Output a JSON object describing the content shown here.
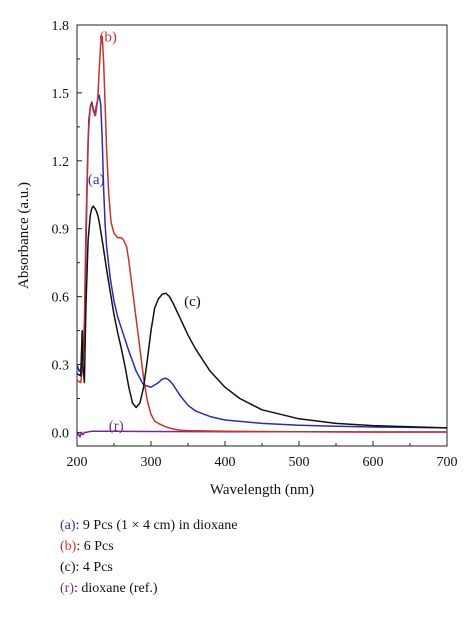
{
  "chart_data": {
    "type": "line",
    "xlabel": "Wavelength (nm)",
    "ylabel": "Absorbance (a.u.)",
    "xlim": [
      200,
      700
    ],
    "ylim": [
      -0.06,
      1.8
    ],
    "xticks": [
      200,
      300,
      400,
      500,
      600,
      700
    ],
    "xtick_labels": [
      "200",
      "300",
      "400",
      "500",
      "600",
      "700"
    ],
    "yticks": [
      0.0,
      0.3,
      0.6,
      0.9,
      1.2,
      1.5,
      1.8
    ],
    "ytick_labels": [
      "0.0",
      "0.3",
      "0.6",
      "0.9",
      "1.2",
      "1.5",
      "1.8"
    ],
    "grid": false,
    "series": [
      {
        "key": "a",
        "name": "9 Pcs (1 × 4 cm) in dioxane",
        "color": "#2b2bb3",
        "x": [
          200,
          203,
          205,
          207,
          208,
          210,
          212,
          214,
          216,
          218,
          220,
          222,
          224,
          226,
          228,
          230,
          232,
          234,
          236,
          238,
          240,
          245,
          250,
          255,
          260,
          265,
          270,
          280,
          290,
          300,
          310,
          315,
          320,
          325,
          330,
          340,
          350,
          360,
          380,
          400,
          450,
          500,
          550,
          600,
          650,
          700
        ],
        "y": [
          0.3,
          0.27,
          0.28,
          0.3,
          0.32,
          0.42,
          0.8,
          1.15,
          1.38,
          1.44,
          1.46,
          1.43,
          1.4,
          1.44,
          1.47,
          1.49,
          1.45,
          1.3,
          1.08,
          0.92,
          0.82,
          0.68,
          0.58,
          0.51,
          0.46,
          0.41,
          0.36,
          0.27,
          0.21,
          0.2,
          0.22,
          0.235,
          0.24,
          0.23,
          0.21,
          0.16,
          0.12,
          0.095,
          0.07,
          0.055,
          0.04,
          0.032,
          0.027,
          0.024,
          0.022,
          0.02
        ]
      },
      {
        "key": "b",
        "name": "6 Pcs",
        "color": "#c8322e",
        "x": [
          200,
          205,
          208,
          210,
          212,
          215,
          218,
          220,
          222,
          225,
          228,
          230,
          232,
          234,
          236,
          238,
          240,
          243,
          246,
          250,
          255,
          260,
          263,
          267,
          270,
          275,
          280,
          285,
          290,
          295,
          300,
          305,
          310,
          320,
          330,
          340,
          350,
          400,
          500,
          600,
          700
        ],
        "y": [
          0.23,
          0.22,
          0.3,
          0.5,
          0.9,
          1.3,
          1.44,
          1.45,
          1.42,
          1.4,
          1.47,
          1.6,
          1.72,
          1.75,
          1.64,
          1.45,
          1.25,
          1.05,
          0.93,
          0.88,
          0.86,
          0.86,
          0.85,
          0.82,
          0.76,
          0.63,
          0.5,
          0.37,
          0.24,
          0.14,
          0.08,
          0.05,
          0.04,
          0.025,
          0.015,
          0.01,
          0.008,
          0.005,
          0.003,
          0.002,
          0.002
        ]
      },
      {
        "key": "c",
        "name": "4 Pcs",
        "color": "#111111",
        "x": [
          200,
          205,
          207,
          208,
          210,
          212,
          215,
          218,
          220,
          222,
          224,
          226,
          228,
          230,
          235,
          240,
          245,
          250,
          255,
          260,
          265,
          270,
          275,
          280,
          285,
          290,
          295,
          300,
          305,
          310,
          315,
          320,
          325,
          330,
          340,
          350,
          360,
          370,
          380,
          400,
          420,
          450,
          500,
          550,
          600,
          650,
          700
        ],
        "y": [
          0.26,
          0.25,
          0.45,
          0.3,
          0.22,
          0.55,
          0.85,
          0.96,
          0.99,
          1.0,
          0.99,
          0.98,
          0.96,
          0.93,
          0.83,
          0.72,
          0.62,
          0.52,
          0.44,
          0.37,
          0.29,
          0.2,
          0.13,
          0.11,
          0.13,
          0.2,
          0.32,
          0.45,
          0.55,
          0.59,
          0.61,
          0.615,
          0.6,
          0.57,
          0.5,
          0.43,
          0.37,
          0.32,
          0.27,
          0.2,
          0.15,
          0.1,
          0.06,
          0.04,
          0.03,
          0.025,
          0.02
        ]
      },
      {
        "key": "r",
        "name": "dioxane (ref.)",
        "color": "#7a2a8c",
        "x": [
          200,
          202,
          204,
          206,
          208,
          210,
          213,
          216,
          220,
          230,
          250,
          300,
          400,
          500,
          600,
          700
        ],
        "y": [
          -0.015,
          -0.005,
          -0.02,
          0.0,
          -0.01,
          0.0,
          0.0,
          0.003,
          0.005,
          0.005,
          0.005,
          0.004,
          0.003,
          0.003,
          0.002,
          0.002
        ]
      }
    ],
    "annotations": [
      {
        "text": "(a)",
        "series": "a",
        "x": 226,
        "y": 1.12
      },
      {
        "text": "(b)",
        "series": "b",
        "x": 242,
        "y": 1.75
      },
      {
        "text": "(c)",
        "series": "c",
        "x": 356,
        "y": 0.58
      },
      {
        "text": "(r)",
        "series": "r",
        "x": 253,
        "y": 0.03
      }
    ],
    "legend": [
      {
        "key": "a",
        "marker": "(a)",
        "text": ": 9 Pcs (1 × 4 cm) in dioxane"
      },
      {
        "key": "b",
        "marker": "(b)",
        "text": ": 6 Pcs"
      },
      {
        "key": "c",
        "marker": "(c)",
        "text": ": 4 Pcs"
      },
      {
        "key": "r",
        "marker": "(r)",
        "text": ": dioxane (ref.)"
      }
    ],
    "legend_position": "bottom-left"
  }
}
